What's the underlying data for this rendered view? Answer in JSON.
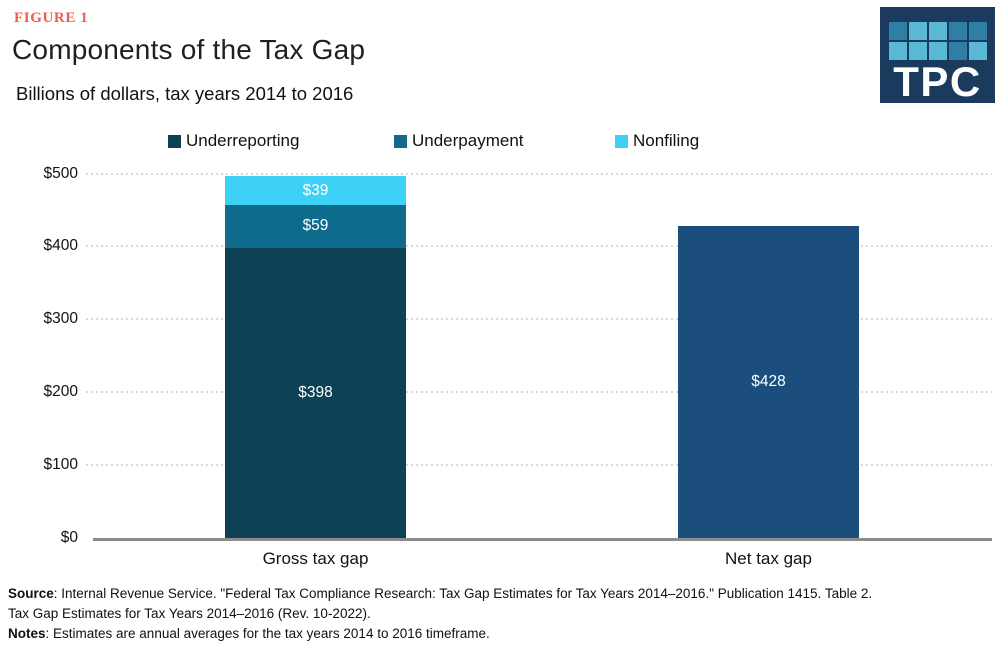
{
  "figure_label": "FIGURE 1",
  "title": "Components of the Tax Gap",
  "subtitle": "Billions of dollars, tax years 2014 to 2016",
  "colors": {
    "figure_label": "#E8604C",
    "underreporting": "#0D4254",
    "underpayment": "#0F6B8C",
    "nonfiling": "#3DD1F5",
    "net_bar": "#1C4E7D",
    "axis_line": "#8C8C8C",
    "gridline": "#D9D9D9",
    "text": "#1A1A1A",
    "bar_label": "#FFFFFF"
  },
  "logo": {
    "text": "TPC",
    "background": "#1B3B5E",
    "square_medium": "#2E7EA6",
    "square_light": "#5ABAD5",
    "grid": [
      [
        "medium",
        "light",
        "light",
        "medium",
        "medium"
      ],
      [
        "light",
        "light",
        "light",
        "medium",
        "light"
      ]
    ]
  },
  "legend": {
    "items": [
      {
        "label": "Underreporting",
        "color_key": "underreporting"
      },
      {
        "label": "Underpayment",
        "color_key": "underpayment"
      },
      {
        "label": "Nonfiling",
        "color_key": "nonfiling"
      }
    ]
  },
  "chart_data": {
    "type": "bar",
    "stacked": true,
    "title": "Components of the Tax Gap",
    "subtitle": "Billions of dollars, tax years 2014 to 2016",
    "unit": "billions of dollars",
    "categories": [
      "Gross tax gap",
      "Net tax gap"
    ],
    "bars": [
      {
        "category": "Gross tax gap",
        "total": 496,
        "segments": [
          {
            "name": "Underreporting",
            "value": 398,
            "label": "$398",
            "color_key": "underreporting"
          },
          {
            "name": "Underpayment",
            "value": 59,
            "label": "$59",
            "color_key": "underpayment"
          },
          {
            "name": "Nonfiling",
            "value": 39,
            "label": "$39",
            "color_key": "nonfiling"
          }
        ]
      },
      {
        "category": "Net tax gap",
        "total": 428,
        "segments": [
          {
            "name": "Net tax gap",
            "value": 428,
            "label": "$428",
            "color_key": "net_bar"
          }
        ]
      }
    ],
    "ylim": [
      0,
      500
    ],
    "y_ticks": [
      {
        "value": 0,
        "label": "$0"
      },
      {
        "value": 100,
        "label": "$100"
      },
      {
        "value": 200,
        "label": "$200"
      },
      {
        "value": 300,
        "label": "$300"
      },
      {
        "value": 400,
        "label": "$400"
      },
      {
        "value": 500,
        "label": "$500"
      }
    ],
    "grid": "horizontal-dotted",
    "legend_position": "top"
  },
  "footer": {
    "lines": [
      {
        "bold": "Source",
        "text": ": Internal Revenue Service. \"Federal Tax Compliance Research: Tax Gap Estimates for Tax Years 2014–2016.\" Publication 1415. Table 2."
      },
      {
        "bold": "",
        "text": "Tax Gap Estimates for Tax Years 2014–2016 (Rev. 10-2022)."
      },
      {
        "bold": "Notes",
        "text": ": Estimates are annual averages for the tax years 2014 to 2016 timeframe."
      }
    ]
  }
}
